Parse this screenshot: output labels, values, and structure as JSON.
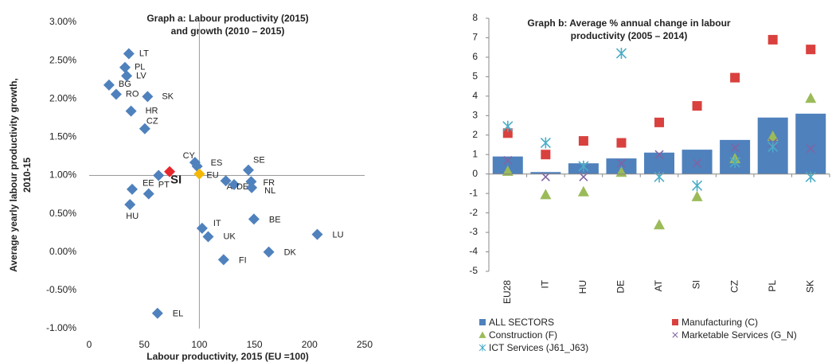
{
  "chart_data": [
    {
      "type": "scatter",
      "title": [
        "Graph a: Labour productivity (2015)",
        "and growth (2010 – 2015)"
      ],
      "x_label": "Labour productivity, 2015 (EU =100)",
      "y_label": [
        "Average yearly labour productivity growth,",
        "2010-15"
      ],
      "labels": [
        "LT",
        "PL",
        "LV",
        "BG",
        "RO",
        "SK",
        "HR",
        "CZ",
        "CY",
        "ES",
        "SI",
        "EU",
        null,
        "EE",
        "PT",
        "HU",
        "SE",
        "AT",
        "DE",
        "FR",
        "NL",
        "BE",
        "LU",
        "IT",
        "UK",
        "FI",
        "DK",
        "EL"
      ],
      "x": [
        36,
        32.5,
        34,
        18,
        24.5,
        53,
        38,
        50.5,
        96,
        98,
        73,
        100,
        63,
        39,
        54,
        37,
        144.5,
        124,
        131.5,
        147,
        147.5,
        149.5,
        207,
        102.5,
        108,
        122,
        163,
        62
      ],
      "y": [
        2.59,
        2.41,
        2.3,
        2.18,
        2.06,
        2.03,
        1.84,
        1.61,
        1.17,
        1.12,
        1.05,
        1.02,
        1.0,
        0.82,
        0.76,
        0.62,
        1.07,
        0.93,
        0.88,
        0.92,
        0.84,
        0.43,
        0.23,
        0.31,
        0.2,
        -0.1,
        0,
        -0.8
      ],
      "color": "#4f81bd",
      "highlight_colors": {
        "10": "#e5272d",
        "11": "#f5b800"
      },
      "bold_label_index": 10,
      "reference_x": 100,
      "reference_y": 1,
      "xlim": [
        0,
        250
      ],
      "xticks": [
        0,
        50,
        100,
        150,
        200,
        250
      ],
      "ylim": [
        -1,
        3
      ],
      "yticks": [
        {
          "value": -1,
          "label": "-1.00%"
        },
        {
          "value": -0.5,
          "label": "-0.50%"
        },
        {
          "value": 0,
          "label": "0.00%"
        },
        {
          "value": 0.5,
          "label": "0.50%"
        },
        {
          "value": 1,
          "label": "1.00%"
        },
        {
          "value": 1.5,
          "label": "1.50%"
        },
        {
          "value": 2,
          "label": "2.00%"
        },
        {
          "value": 2.5,
          "label": "2.50%"
        },
        {
          "value": 3,
          "label": "3.00%"
        }
      ]
    },
    {
      "type": "bar",
      "title": [
        "Graph b: Average % annual change in labour",
        "productivity (2005 – 2014)"
      ],
      "categories": [
        "EU28",
        "IT",
        "HU",
        "DE",
        "AT",
        "SI",
        "CZ",
        "PL",
        "SK"
      ],
      "series": [
        {
          "name": "ALL SECTORS",
          "color": "#4f81bd",
          "marker": "bar",
          "values": [
            0.9,
            0.1,
            0.55,
            0.8,
            1.1,
            1.25,
            1.75,
            2.9,
            3.1
          ]
        },
        {
          "name": "Manufacturing (C)",
          "color": "#d9413e",
          "marker": "square",
          "values": [
            2.1,
            1.0,
            1.7,
            1.6,
            2.65,
            3.5,
            4.95,
            6.9,
            6.4
          ]
        },
        {
          "name": "Construction (F)",
          "color": "#9bbb59",
          "marker": "triangle",
          "values": [
            0.15,
            -1.05,
            -0.9,
            0.1,
            -2.6,
            -1.15,
            0.8,
            1.95,
            3.9
          ]
        },
        {
          "name": "Marketable Services (G_N)",
          "color": "#8064a2",
          "marker": "x",
          "values": [
            0.7,
            -0.15,
            -0.15,
            0.55,
            1.0,
            0.55,
            1.35,
            1.6,
            1.3
          ]
        },
        {
          "name": "ICT Services (J61_J63)",
          "color": "#4bacc6",
          "marker": "asterisk",
          "values": [
            2.45,
            1.6,
            0.4,
            6.2,
            -0.15,
            -0.6,
            0.6,
            1.4,
            -0.15
          ]
        }
      ],
      "ylim": [
        -5,
        8
      ],
      "yticks": [
        -5,
        -4,
        -3,
        -2,
        -1,
        0,
        1,
        2,
        3,
        4,
        5,
        6,
        7,
        8
      ]
    }
  ]
}
